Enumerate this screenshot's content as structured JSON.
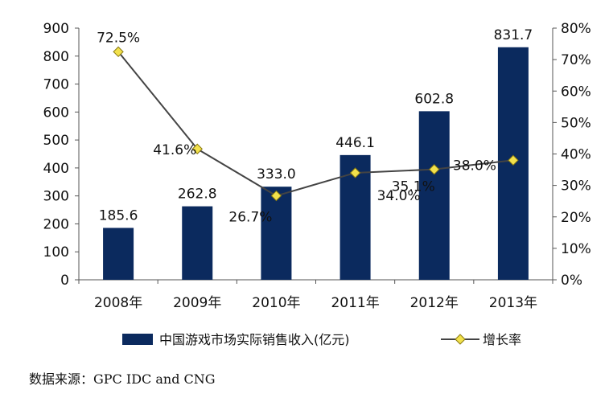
{
  "chart_data": {
    "type": "bar",
    "categories": [
      "2008年",
      "2009年",
      "2010年",
      "2011年",
      "2012年",
      "2013年"
    ],
    "series": [
      {
        "name": "中国游戏市场实际销售收入(亿元)",
        "type": "bar",
        "axis": "left",
        "color": "#0b2a5e",
        "values": [
          185.6,
          262.8,
          333.0,
          446.1,
          602.8,
          831.7
        ],
        "labels": [
          "185.6",
          "262.8",
          "333.0",
          "446.1",
          "602.8",
          "831.7"
        ]
      },
      {
        "name": "增长率",
        "type": "line",
        "axis": "right",
        "line_color": "#444444",
        "marker": "diamond",
        "marker_color": "#f2e14c",
        "values": [
          72.5,
          41.6,
          26.7,
          34.0,
          35.1,
          38.0
        ],
        "labels": [
          "72.5%",
          "41.6%",
          "26.7%",
          "34.0%",
          "35.1%",
          "38.0%"
        ]
      }
    ],
    "y_left": {
      "min": 0,
      "max": 900,
      "step": 100,
      "ticks": [
        "0",
        "100",
        "200",
        "300",
        "400",
        "500",
        "600",
        "700",
        "800",
        "900"
      ]
    },
    "y_right": {
      "min": 0,
      "max": 80,
      "step": 10,
      "ticks": [
        "0%",
        "10%",
        "20%",
        "30%",
        "40%",
        "50%",
        "60%",
        "70%",
        "80%"
      ]
    },
    "grid": false,
    "legend_position": "bottom",
    "title": "",
    "xlabel": "",
    "ylabel": ""
  },
  "source_text": "数据来源：GPC IDC and CNG"
}
